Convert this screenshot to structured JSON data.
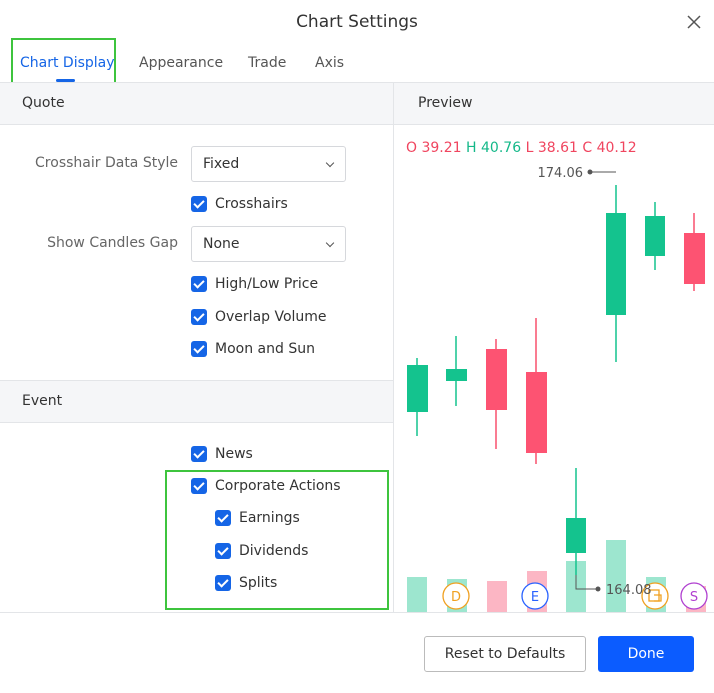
{
  "header": {
    "title": "Chart Settings"
  },
  "tabs": [
    "Chart Display",
    "Appearance",
    "Trade",
    "Axis"
  ],
  "quote": {
    "title": "Quote",
    "crosshair_style": {
      "label": "Crosshair Data Style",
      "value": "Fixed"
    },
    "crosshairs": "Crosshairs",
    "candles_gap": {
      "label": "Show Candles Gap",
      "value": "None"
    },
    "checks": [
      "High/Low Price",
      "Overlap Volume",
      "Moon and Sun"
    ]
  },
  "event": {
    "title": "Event",
    "news": "News",
    "corporate_actions": "Corporate Actions",
    "sub": [
      "Earnings",
      "Dividends",
      "Splits"
    ]
  },
  "preview": {
    "title": "Preview",
    "ohlc": [
      {
        "label": "O",
        "value": 39.21
      },
      {
        "label": "H",
        "value": 40.76
      },
      {
        "label": "L",
        "value": 38.61
      },
      {
        "label": "C",
        "value": 40.12
      }
    ],
    "high_label": 174.06,
    "low_label": 164.08,
    "markers": [
      "D",
      "E",
      "S"
    ]
  },
  "footer": {
    "reset": "Reset to Defaults",
    "done": "Done"
  }
}
